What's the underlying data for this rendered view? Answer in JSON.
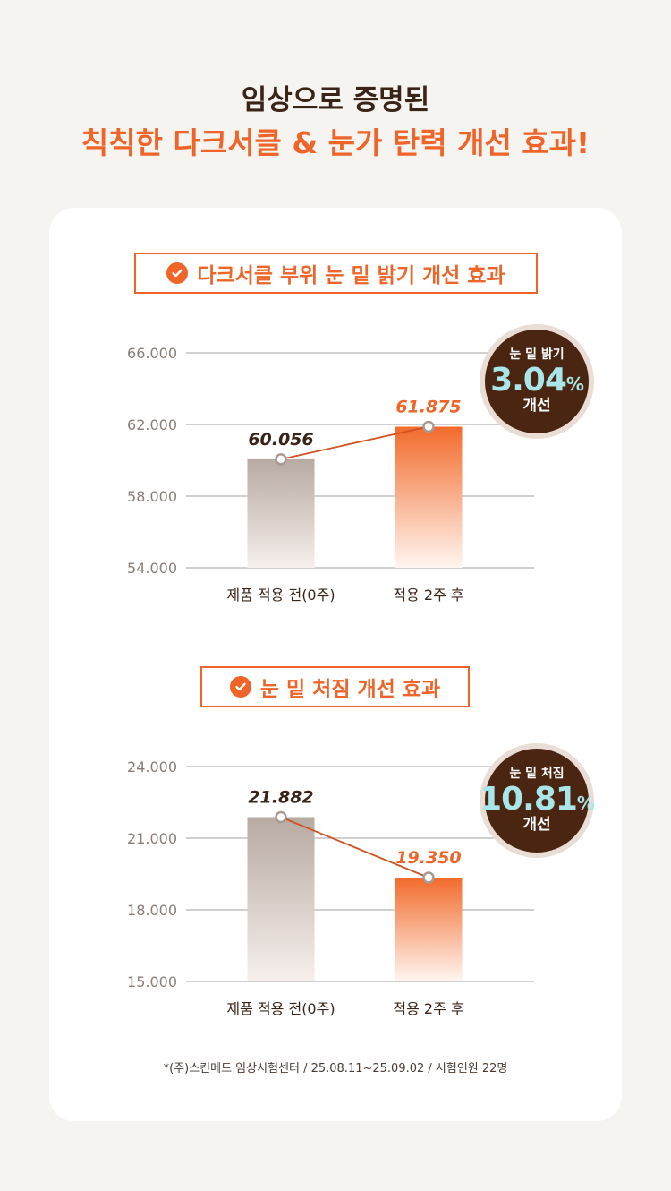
{
  "headline": {
    "line1": "임상으로 증명된",
    "line2": "칙칙한 다크서클 & 눈가 탄력 개선 효과!"
  },
  "colors": {
    "accent": "#ef6428",
    "dark_brown": "#4a2612",
    "mint": "#a9e6ea",
    "before_bar_top": "#b7aaa2",
    "after_bar_top": "#f26b2c",
    "grid": "#b5b5b5"
  },
  "sections": [
    {
      "title": "다크서클 부위 눈 밑 밝기 개선 효과",
      "icon": "check-circle-icon",
      "badge": {
        "top": "눈 밑 밝기",
        "pct": "3.04",
        "unit": "%",
        "bottom": "개선"
      }
    },
    {
      "title": "눈 밑 처짐 개선 효과",
      "icon": "check-circle-icon",
      "badge": {
        "top": "눈 밑 처짐",
        "pct": "10.81",
        "unit": "%",
        "bottom": "개선"
      }
    }
  ],
  "chart_data": [
    {
      "type": "bar",
      "title": "다크서클 부위 눈 밑 밝기 개선 효과",
      "categories": [
        "제품 적용 전(0주)",
        "적용 2주 후"
      ],
      "values": [
        60.056,
        61.875
      ],
      "value_labels": [
        "60.056",
        "61.875"
      ],
      "ylim": [
        54,
        66
      ],
      "yticks": [
        54,
        58,
        62,
        66
      ],
      "ytick_labels": [
        "54.000",
        "58.000",
        "62.000",
        "66.000"
      ],
      "grid": true,
      "connector_line": true
    },
    {
      "type": "bar",
      "title": "눈 밑 처짐 개선 효과",
      "categories": [
        "제품 적용 전(0주)",
        "적용 2주 후"
      ],
      "values": [
        21.882,
        19.35
      ],
      "value_labels": [
        "21.882",
        "19.350"
      ],
      "ylim": [
        15,
        24
      ],
      "yticks": [
        15,
        18,
        21,
        24
      ],
      "ytick_labels": [
        "15.000",
        "18.000",
        "21.000",
        "24.000"
      ],
      "grid": true,
      "connector_line": true
    }
  ],
  "footnote": "*(주)스킨메드 임상시험센터 / 25.08.11~25.09.02 / 시험인원 22명"
}
